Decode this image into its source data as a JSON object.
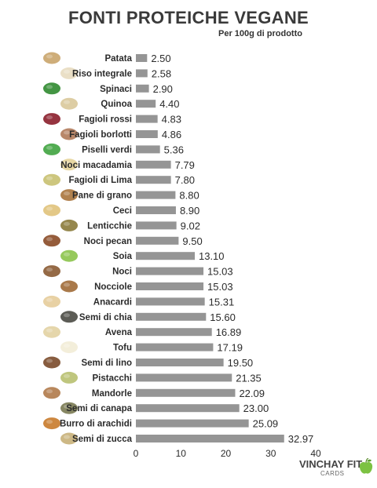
{
  "header": {
    "title": "FONTI PROTEICHE VEGANE",
    "subtitle": "Per 100g di prodotto"
  },
  "brand": {
    "name": "VINCHAY FIT",
    "sub": "CARDS",
    "accent_color": "#7cc242"
  },
  "chart_data": {
    "type": "bar",
    "orientation": "horizontal",
    "title": "FONTI PROTEICHE VEGANE",
    "subtitle": "Per 100g di prodotto",
    "xlabel": "",
    "ylabel": "",
    "xlim": [
      0,
      40
    ],
    "x_ticks": [
      0,
      10,
      20,
      30,
      40
    ],
    "grid": false,
    "bar_color": "#959595",
    "categories": [
      "Patata",
      "Riso integrale",
      "Spinaci",
      "Quinoa",
      "Fagioli rossi",
      "Fagioli borlotti",
      "Piselli verdi",
      "Noci macadamia",
      "Fagioli di Lima",
      "Pane di grano",
      "Ceci",
      "Lenticchie",
      "Noci pecan",
      "Soia",
      "Noci",
      "Nocciole",
      "Anacardi",
      "Semi di chia",
      "Avena",
      "Tofu",
      "Semi di lino",
      "Pistacchi",
      "Mandorle",
      "Semi di canapa",
      "Burro di arachidi",
      "Semi di zucca"
    ],
    "values": [
      2.5,
      2.58,
      2.9,
      4.4,
      4.83,
      4.86,
      5.36,
      7.79,
      7.8,
      8.8,
      8.9,
      9.02,
      9.5,
      13.1,
      15.03,
      15.03,
      15.31,
      15.6,
      16.89,
      17.19,
      19.5,
      21.35,
      22.09,
      23.0,
      25.09,
      32.97
    ],
    "value_labels": [
      "2.50",
      "2.58",
      "2.90",
      "4.40",
      "4.83",
      "4.86",
      "5.36",
      "7.79",
      "7.80",
      "8.80",
      "8.90",
      "9.02",
      "9.50",
      "13.10",
      "15.03",
      "15.03",
      "15.31",
      "15.60",
      "16.89",
      "17.19",
      "19.50",
      "21.35",
      "22.09",
      "23.00",
      "25.09",
      "32.97"
    ],
    "icon_names": [
      "potato-icon",
      "rice-icon",
      "spinach-icon",
      "quinoa-icon",
      "red-beans-icon",
      "borlotti-beans-icon",
      "green-peas-icon",
      "macadamia-icon",
      "lima-beans-icon",
      "bread-icon",
      "chickpeas-icon",
      "lentils-icon",
      "pecan-icon",
      "soy-icon",
      "walnut-icon",
      "hazelnut-icon",
      "cashew-icon",
      "chia-seeds-icon",
      "oats-icon",
      "tofu-icon",
      "flax-seeds-icon",
      "pistachio-icon",
      "almond-icon",
      "hemp-seeds-icon",
      "peanut-butter-icon",
      "pumpkin-seeds-icon"
    ],
    "icon_colors": [
      "#c9a46a",
      "#e8dcc0",
      "#2f8a2f",
      "#d9c89a",
      "#8b1e2b",
      "#b07a5a",
      "#3fa33f",
      "#e6d49a",
      "#c8c070",
      "#a8743c",
      "#e0c27a",
      "#8a7a3a",
      "#8a4a26",
      "#8bc34a",
      "#8a5a32",
      "#a06a36",
      "#e6cc9a",
      "#4a4a44",
      "#e2d2a2",
      "#f2ecd6",
      "#7a4a2a",
      "#b8c070",
      "#b07a4a",
      "#7a7a52",
      "#c87a2a",
      "#c8b078"
    ]
  }
}
